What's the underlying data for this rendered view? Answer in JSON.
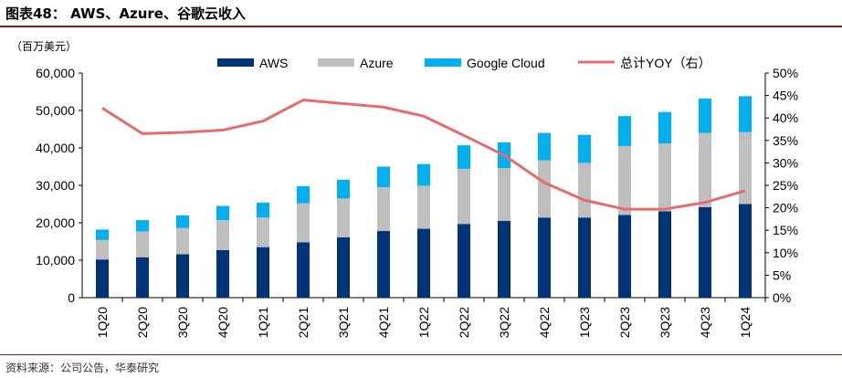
{
  "title": "图表48： AWS、Azure、谷歌云收入",
  "unit": "（百万美元）",
  "source": "资料来源：公司公告，华泰研究",
  "chart_data": {
    "type": "bar",
    "stacked": true,
    "categories": [
      "1Q20",
      "2Q20",
      "3Q20",
      "4Q20",
      "1Q21",
      "2Q21",
      "3Q21",
      "4Q21",
      "1Q22",
      "2Q22",
      "3Q22",
      "4Q22",
      "1Q23",
      "2Q23",
      "3Q23",
      "4Q23",
      "1Q24"
    ],
    "series": [
      {
        "name": "AWS",
        "color": "#003478",
        "values": [
          10200,
          10800,
          11600,
          12700,
          13500,
          14800,
          16100,
          17800,
          18400,
          19700,
          20500,
          21400,
          21400,
          22100,
          23100,
          24200,
          25000
        ]
      },
      {
        "name": "Azure",
        "color": "#bfbfbf",
        "values": [
          5200,
          6900,
          7000,
          8000,
          7900,
          10400,
          10400,
          11700,
          11500,
          14700,
          14100,
          15300,
          14600,
          18400,
          18100,
          19800,
          19200
        ]
      },
      {
        "name": "Google Cloud",
        "color": "#00b0f0",
        "values": [
          2800,
          3000,
          3400,
          3800,
          4000,
          4600,
          5000,
          5500,
          5800,
          6300,
          6900,
          7300,
          7500,
          8000,
          8400,
          9200,
          9600
        ]
      },
      {
        "name": "总计YOY（右）",
        "type": "line",
        "axis": "right",
        "color": "#e46c6c",
        "values": [
          42.2,
          36.5,
          36.8,
          37.3,
          39.3,
          44.0,
          43.2,
          42.4,
          40.4,
          36.1,
          31.7,
          25.6,
          21.7,
          19.7,
          19.7,
          21.2,
          23.8
        ]
      }
    ],
    "yleft": {
      "min": 0,
      "max": 60000,
      "ticks": [
        "0",
        "10,000",
        "20,000",
        "30,000",
        "40,000",
        "50,000",
        "60,000"
      ]
    },
    "yright": {
      "min": 0,
      "max": 50,
      "ticks": [
        "0%",
        "5%",
        "10%",
        "15%",
        "20%",
        "25%",
        "30%",
        "35%",
        "40%",
        "45%",
        "50%"
      ]
    },
    "legend": "top",
    "grid": false
  }
}
